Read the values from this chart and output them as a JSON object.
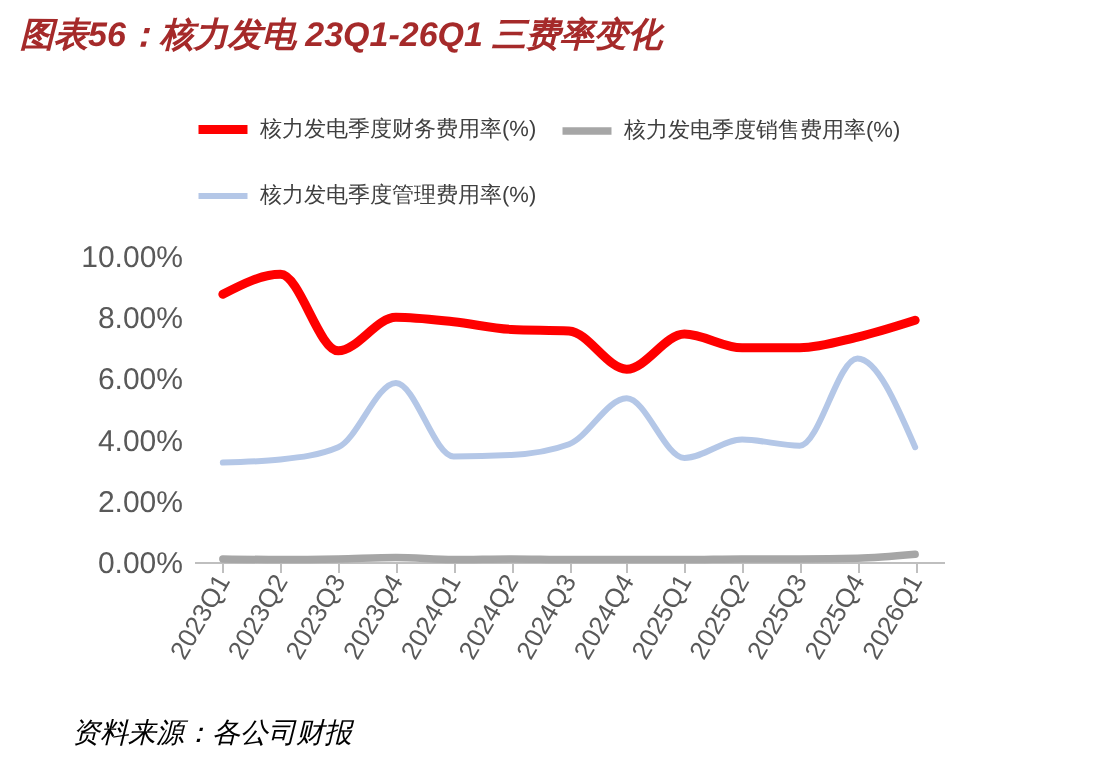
{
  "chart_data": {
    "type": "line",
    "title": "图表56：核力发电 23Q1-26Q1 三费率变化",
    "categories": [
      "2023Q1",
      "2023Q2",
      "2023Q3",
      "2023Q4",
      "2024Q1",
      "2024Q2",
      "2024Q3",
      "2024Q4",
      "2025Q1",
      "2025Q2",
      "2025Q3",
      "2025Q4",
      "2026Q1"
    ],
    "series": [
      {
        "name": "核力发电季度财务费用率(%)",
        "color": "#ff0000",
        "values": [
          8.75,
          9.4,
          6.9,
          8.0,
          7.85,
          7.6,
          7.55,
          6.3,
          7.45,
          7.0,
          7.0,
          7.35,
          7.9
        ]
      },
      {
        "name": "核力发电季度销售费用率(%)",
        "color": "#a6a6a6",
        "values": [
          0.1,
          0.08,
          0.1,
          0.15,
          0.08,
          0.1,
          0.08,
          0.08,
          0.08,
          0.1,
          0.1,
          0.12,
          0.25
        ]
      },
      {
        "name": "核力发电季度管理费用率(%)",
        "color": "#b4c7e7",
        "values": [
          3.25,
          3.35,
          3.75,
          5.85,
          3.45,
          3.5,
          3.85,
          5.35,
          3.4,
          4.0,
          3.8,
          6.65,
          3.75
        ]
      }
    ],
    "ylim": [
      0,
      10
    ],
    "yticks": [
      {
        "value": 0,
        "label": "0.00%"
      },
      {
        "value": 2,
        "label": "2.00%"
      },
      {
        "value": 4,
        "label": "4.00%"
      },
      {
        "value": 6,
        "label": "6.00%"
      },
      {
        "value": 8,
        "label": "8.00%"
      },
      {
        "value": 10,
        "label": "10.00%"
      }
    ],
    "grid": false,
    "legend": "top",
    "marker": "none",
    "line_style": "solid",
    "annotations": [
      "资料来源：各公司财报"
    ]
  }
}
